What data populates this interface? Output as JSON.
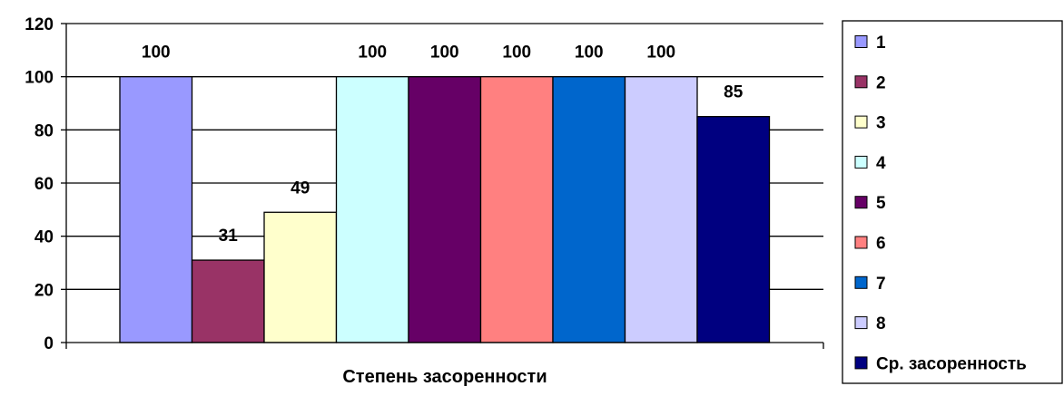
{
  "chart_data": {
    "type": "bar",
    "xlabel": "Степень засоренности",
    "ylabel": "",
    "ylim": [
      0,
      120
    ],
    "yticks": [
      0,
      20,
      40,
      60,
      80,
      100,
      120
    ],
    "grid": true,
    "legend_position": "right",
    "series": [
      {
        "name": "1",
        "value": 100,
        "color": "#9999FF"
      },
      {
        "name": "2",
        "value": 31,
        "color": "#993366"
      },
      {
        "name": "3",
        "value": 49,
        "color": "#FFFFCC"
      },
      {
        "name": "4",
        "value": 100,
        "color": "#CCFFFF"
      },
      {
        "name": "5",
        "value": 100,
        "color": "#660066"
      },
      {
        "name": "6",
        "value": 100,
        "color": "#FF8080"
      },
      {
        "name": "7",
        "value": 100,
        "color": "#0066CC"
      },
      {
        "name": "8",
        "value": 100,
        "color": "#CCCCFF"
      },
      {
        "name": "Ср. засоренность",
        "value": 85,
        "color": "#000080"
      }
    ]
  }
}
